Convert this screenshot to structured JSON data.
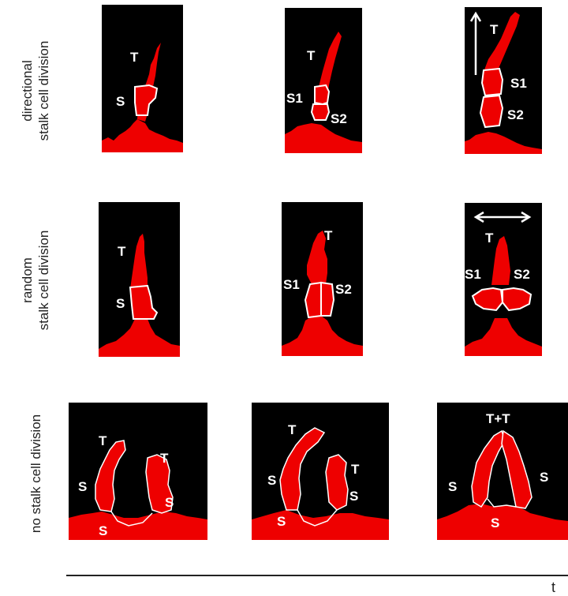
{
  "rows": [
    {
      "label_lines": [
        "directional",
        "stalk cell division"
      ],
      "panels": [
        {
          "labels": [
            "T",
            "S"
          ]
        },
        {
          "labels": [
            "T",
            "S1",
            "S2"
          ]
        },
        {
          "labels": [
            "T",
            "S1",
            "S2"
          ],
          "arrow": "vertical"
        }
      ]
    },
    {
      "label_lines": [
        "random",
        "stalk cell division"
      ],
      "panels": [
        {
          "labels": [
            "T",
            "S"
          ]
        },
        {
          "labels": [
            "T",
            "S1",
            "S2"
          ]
        },
        {
          "labels": [
            "T",
            "S1",
            "S2"
          ],
          "arrow": "horizontal"
        }
      ]
    },
    {
      "label_lines": [
        "no stalk cell division"
      ],
      "panels": [
        {
          "labels": [
            "T",
            "T",
            "S",
            "S",
            "S"
          ]
        },
        {
          "labels": [
            "T",
            "T",
            "S",
            "S",
            "S"
          ]
        },
        {
          "labels": [
            "T+T",
            "S",
            "S",
            "S"
          ]
        }
      ]
    }
  ],
  "axis": {
    "label": "t"
  },
  "colors": {
    "tissue": "#ee0000",
    "background": "#000000",
    "outline": "#ffffff"
  }
}
